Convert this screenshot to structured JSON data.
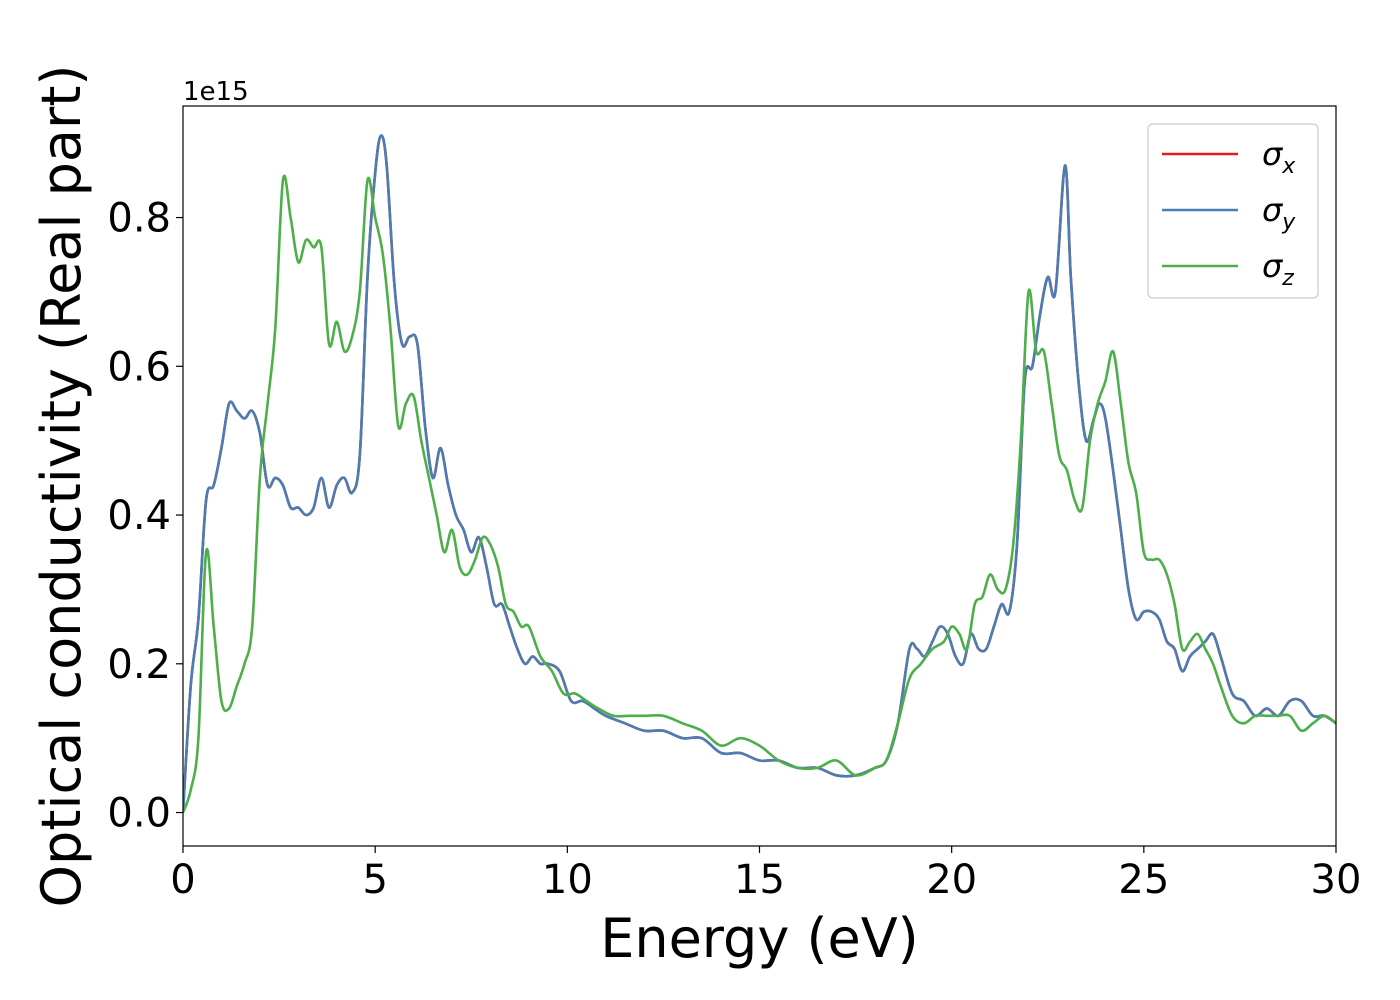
{
  "chart_data": {
    "type": "line",
    "xlabel": "Energy (eV)",
    "ylabel": "Optical conductivity (Real part)",
    "y_offset_label": "1e15",
    "xlim": [
      0,
      30
    ],
    "ylim": [
      -0.045,
      0.95
    ],
    "x_ticks": [
      0,
      5,
      10,
      15,
      20,
      25,
      30
    ],
    "x_tick_labels": [
      "0",
      "5",
      "10",
      "15",
      "20",
      "25",
      "30"
    ],
    "y_ticks": [
      0.0,
      0.2,
      0.4,
      0.6,
      0.8
    ],
    "y_tick_labels": [
      "0.0",
      "0.2",
      "0.4",
      "0.6",
      "0.8"
    ],
    "grid": false,
    "legend_position": "top-right",
    "series": [
      {
        "name": "σx",
        "symbol": "σ",
        "subscript": "x",
        "color": "#e41a1c",
        "x": [
          0.0,
          0.2,
          0.4,
          0.6,
          0.8,
          1.0,
          1.2,
          1.4,
          1.6,
          1.8,
          2.0,
          2.2,
          2.4,
          2.6,
          2.8,
          3.0,
          3.2,
          3.4,
          3.6,
          3.8,
          4.0,
          4.2,
          4.4,
          4.6,
          4.8,
          5.0,
          5.15,
          5.3,
          5.5,
          5.7,
          5.9,
          6.1,
          6.3,
          6.5,
          6.7,
          6.9,
          7.1,
          7.3,
          7.5,
          7.7,
          7.9,
          8.1,
          8.3,
          8.5,
          8.7,
          8.9,
          9.1,
          9.3,
          9.5,
          9.8,
          10.1,
          10.4,
          10.7,
          11.0,
          11.5,
          12.0,
          12.5,
          13.0,
          13.5,
          14.0,
          14.5,
          15.0,
          15.5,
          16.0,
          16.5,
          17.0,
          17.5,
          18.0,
          18.3,
          18.6,
          18.9,
          19.1,
          19.3,
          19.5,
          19.7,
          19.9,
          20.1,
          20.3,
          20.5,
          20.7,
          20.9,
          21.1,
          21.3,
          21.5,
          21.7,
          21.9,
          22.1,
          22.3,
          22.5,
          22.7,
          22.95,
          23.1,
          23.3,
          23.5,
          23.7,
          23.85,
          24.0,
          24.2,
          24.4,
          24.6,
          24.8,
          25.0,
          25.2,
          25.4,
          25.6,
          25.8,
          26.0,
          26.2,
          26.4,
          26.6,
          26.8,
          27.0,
          27.3,
          27.6,
          27.9,
          28.2,
          28.5,
          28.8,
          29.1,
          29.4,
          29.7,
          30.0
        ],
        "values": [
          0.0,
          0.17,
          0.26,
          0.42,
          0.44,
          0.49,
          0.55,
          0.54,
          0.53,
          0.54,
          0.51,
          0.44,
          0.45,
          0.44,
          0.41,
          0.41,
          0.4,
          0.41,
          0.45,
          0.41,
          0.44,
          0.45,
          0.43,
          0.48,
          0.72,
          0.86,
          0.91,
          0.87,
          0.71,
          0.63,
          0.64,
          0.63,
          0.52,
          0.45,
          0.49,
          0.44,
          0.4,
          0.38,
          0.35,
          0.37,
          0.33,
          0.28,
          0.28,
          0.25,
          0.22,
          0.2,
          0.21,
          0.2,
          0.2,
          0.19,
          0.15,
          0.15,
          0.14,
          0.13,
          0.12,
          0.11,
          0.11,
          0.1,
          0.1,
          0.08,
          0.08,
          0.07,
          0.07,
          0.06,
          0.06,
          0.05,
          0.05,
          0.06,
          0.07,
          0.12,
          0.22,
          0.22,
          0.21,
          0.23,
          0.25,
          0.24,
          0.21,
          0.2,
          0.24,
          0.22,
          0.22,
          0.25,
          0.28,
          0.27,
          0.36,
          0.58,
          0.6,
          0.67,
          0.72,
          0.7,
          0.87,
          0.72,
          0.58,
          0.5,
          0.53,
          0.55,
          0.53,
          0.46,
          0.38,
          0.3,
          0.26,
          0.27,
          0.27,
          0.26,
          0.23,
          0.22,
          0.19,
          0.21,
          0.22,
          0.23,
          0.24,
          0.21,
          0.16,
          0.15,
          0.13,
          0.14,
          0.13,
          0.15,
          0.15,
          0.13,
          0.13,
          0.12
        ]
      },
      {
        "name": "σy",
        "symbol": "σ",
        "subscript": "y",
        "color": "#4a7db3",
        "x": [
          0.0,
          0.2,
          0.4,
          0.6,
          0.8,
          1.0,
          1.2,
          1.4,
          1.6,
          1.8,
          2.0,
          2.2,
          2.4,
          2.6,
          2.8,
          3.0,
          3.2,
          3.4,
          3.6,
          3.8,
          4.0,
          4.2,
          4.4,
          4.6,
          4.8,
          5.0,
          5.15,
          5.3,
          5.5,
          5.7,
          5.9,
          6.1,
          6.3,
          6.5,
          6.7,
          6.9,
          7.1,
          7.3,
          7.5,
          7.7,
          7.9,
          8.1,
          8.3,
          8.5,
          8.7,
          8.9,
          9.1,
          9.3,
          9.5,
          9.8,
          10.1,
          10.4,
          10.7,
          11.0,
          11.5,
          12.0,
          12.5,
          13.0,
          13.5,
          14.0,
          14.5,
          15.0,
          15.5,
          16.0,
          16.5,
          17.0,
          17.5,
          18.0,
          18.3,
          18.6,
          18.9,
          19.1,
          19.3,
          19.5,
          19.7,
          19.9,
          20.1,
          20.3,
          20.5,
          20.7,
          20.9,
          21.1,
          21.3,
          21.5,
          21.7,
          21.9,
          22.1,
          22.3,
          22.5,
          22.7,
          22.95,
          23.1,
          23.3,
          23.5,
          23.7,
          23.85,
          24.0,
          24.2,
          24.4,
          24.6,
          24.8,
          25.0,
          25.2,
          25.4,
          25.6,
          25.8,
          26.0,
          26.2,
          26.4,
          26.6,
          26.8,
          27.0,
          27.3,
          27.6,
          27.9,
          28.2,
          28.5,
          28.8,
          29.1,
          29.4,
          29.7,
          30.0
        ],
        "values": [
          0.0,
          0.17,
          0.26,
          0.42,
          0.44,
          0.49,
          0.55,
          0.54,
          0.53,
          0.54,
          0.51,
          0.44,
          0.45,
          0.44,
          0.41,
          0.41,
          0.4,
          0.41,
          0.45,
          0.41,
          0.44,
          0.45,
          0.43,
          0.48,
          0.72,
          0.86,
          0.91,
          0.87,
          0.71,
          0.63,
          0.64,
          0.63,
          0.52,
          0.45,
          0.49,
          0.44,
          0.4,
          0.38,
          0.35,
          0.37,
          0.33,
          0.28,
          0.28,
          0.25,
          0.22,
          0.2,
          0.21,
          0.2,
          0.2,
          0.19,
          0.15,
          0.15,
          0.14,
          0.13,
          0.12,
          0.11,
          0.11,
          0.1,
          0.1,
          0.08,
          0.08,
          0.07,
          0.07,
          0.06,
          0.06,
          0.05,
          0.05,
          0.06,
          0.07,
          0.12,
          0.22,
          0.22,
          0.21,
          0.23,
          0.25,
          0.24,
          0.21,
          0.2,
          0.24,
          0.22,
          0.22,
          0.25,
          0.28,
          0.27,
          0.36,
          0.58,
          0.6,
          0.67,
          0.72,
          0.7,
          0.87,
          0.72,
          0.58,
          0.5,
          0.53,
          0.55,
          0.53,
          0.46,
          0.38,
          0.3,
          0.26,
          0.27,
          0.27,
          0.26,
          0.23,
          0.22,
          0.19,
          0.21,
          0.22,
          0.23,
          0.24,
          0.21,
          0.16,
          0.15,
          0.13,
          0.14,
          0.13,
          0.15,
          0.15,
          0.13,
          0.13,
          0.12
        ]
      },
      {
        "name": "σz",
        "symbol": "σ",
        "subscript": "z",
        "color": "#4daf4a",
        "x": [
          0.0,
          0.2,
          0.4,
          0.6,
          0.8,
          1.0,
          1.2,
          1.4,
          1.6,
          1.8,
          2.0,
          2.2,
          2.4,
          2.6,
          2.8,
          3.0,
          3.2,
          3.4,
          3.6,
          3.8,
          4.0,
          4.2,
          4.4,
          4.6,
          4.8,
          5.0,
          5.2,
          5.4,
          5.6,
          5.8,
          6.0,
          6.2,
          6.4,
          6.6,
          6.8,
          7.0,
          7.2,
          7.4,
          7.6,
          7.8,
          8.0,
          8.2,
          8.4,
          8.6,
          8.8,
          9.0,
          9.3,
          9.6,
          9.9,
          10.2,
          10.5,
          10.8,
          11.2,
          11.6,
          12.0,
          12.5,
          13.0,
          13.5,
          14.0,
          14.5,
          15.0,
          15.5,
          16.0,
          16.5,
          17.0,
          17.5,
          18.0,
          18.3,
          18.6,
          18.9,
          19.2,
          19.5,
          19.8,
          20.0,
          20.2,
          20.4,
          20.6,
          20.8,
          21.0,
          21.2,
          21.4,
          21.6,
          21.8,
          22.0,
          22.2,
          22.4,
          22.6,
          22.8,
          23.0,
          23.2,
          23.4,
          23.6,
          23.8,
          24.0,
          24.2,
          24.4,
          24.6,
          24.8,
          25.0,
          25.2,
          25.4,
          25.6,
          25.8,
          26.0,
          26.2,
          26.4,
          26.6,
          26.8,
          27.0,
          27.3,
          27.6,
          27.9,
          28.2,
          28.5,
          28.8,
          29.1,
          29.4,
          29.7,
          30.0
        ],
        "values": [
          0.0,
          0.03,
          0.1,
          0.35,
          0.25,
          0.15,
          0.14,
          0.17,
          0.2,
          0.25,
          0.45,
          0.55,
          0.65,
          0.85,
          0.8,
          0.74,
          0.77,
          0.76,
          0.76,
          0.63,
          0.66,
          0.62,
          0.64,
          0.7,
          0.85,
          0.8,
          0.75,
          0.65,
          0.52,
          0.55,
          0.56,
          0.5,
          0.45,
          0.4,
          0.35,
          0.38,
          0.33,
          0.32,
          0.34,
          0.37,
          0.36,
          0.33,
          0.28,
          0.27,
          0.25,
          0.25,
          0.21,
          0.19,
          0.16,
          0.16,
          0.15,
          0.14,
          0.13,
          0.13,
          0.13,
          0.13,
          0.12,
          0.11,
          0.09,
          0.1,
          0.09,
          0.07,
          0.06,
          0.06,
          0.07,
          0.05,
          0.06,
          0.07,
          0.12,
          0.18,
          0.2,
          0.22,
          0.23,
          0.25,
          0.24,
          0.22,
          0.28,
          0.29,
          0.32,
          0.3,
          0.3,
          0.36,
          0.5,
          0.7,
          0.62,
          0.62,
          0.55,
          0.48,
          0.46,
          0.42,
          0.41,
          0.5,
          0.55,
          0.58,
          0.62,
          0.55,
          0.47,
          0.43,
          0.35,
          0.34,
          0.34,
          0.32,
          0.28,
          0.22,
          0.23,
          0.24,
          0.22,
          0.2,
          0.17,
          0.13,
          0.12,
          0.13,
          0.13,
          0.13,
          0.13,
          0.11,
          0.12,
          0.13,
          0.12
        ]
      }
    ]
  }
}
